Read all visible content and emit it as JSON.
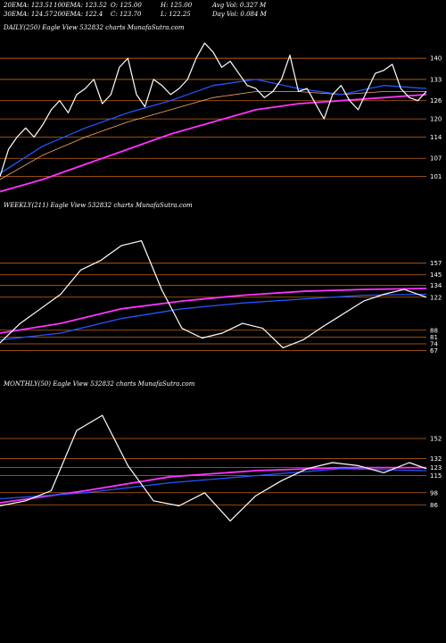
{
  "header": {
    "ema20": "20EMA: 123.51",
    "ema100": "100EMA: 123.52",
    "open": "O: 125.00",
    "high": "H: 125.00",
    "avgvol": "Avg Vol: 0.327 M",
    "ema30": "30EMA: 124.57",
    "ema200": "200EMA: 122.4",
    "close": "C: 123.70",
    "low": "L: 122.25",
    "dayvol": "Day Vol: 0.084 M"
  },
  "colors": {
    "price": "#ffffff",
    "ema_fast": "#2255ff",
    "ema_slow": "#ff33ff",
    "grid": "#c86414",
    "ma_light": "#ffaa66"
  },
  "chart_data": [
    {
      "type": "line",
      "title": "DAILY(250) Eagle  View  532832  charts MunafaSutra.com",
      "ylim": [
        95,
        148
      ],
      "right_ticks": [
        140,
        133,
        126,
        120,
        114,
        107,
        101
      ],
      "series": [
        {
          "role": "price",
          "x": [
            0,
            5,
            10,
            15,
            20,
            25,
            30,
            35,
            40,
            45,
            50,
            55,
            60,
            65,
            70,
            75,
            80,
            85,
            90,
            95,
            100,
            105,
            110,
            115,
            120,
            125,
            130,
            135,
            140,
            145,
            150,
            155,
            160,
            165,
            170,
            175,
            180,
            185,
            190,
            195,
            200,
            205,
            210,
            215,
            220,
            225,
            230,
            235,
            240,
            245,
            250
          ],
          "values": [
            101,
            110,
            114,
            117,
            114,
            118,
            123,
            126,
            122,
            128,
            130,
            133,
            125,
            128,
            137,
            140,
            128,
            124,
            133,
            131,
            128,
            130,
            133,
            140,
            145,
            142,
            137,
            139,
            135,
            131,
            130,
            127,
            129,
            133,
            141,
            129,
            130,
            125,
            120,
            128,
            131,
            126,
            123,
            129,
            135,
            136,
            138,
            130,
            127,
            126,
            129
          ]
        },
        {
          "role": "ema_fast",
          "x": [
            0,
            25,
            50,
            75,
            100,
            125,
            150,
            175,
            200,
            225,
            250
          ],
          "values": [
            102,
            111,
            117,
            122,
            126,
            131,
            133,
            130,
            128,
            131,
            130
          ]
        },
        {
          "role": "ema_mid",
          "x": [
            0,
            25,
            50,
            75,
            100,
            125,
            150,
            175,
            200,
            225,
            250
          ],
          "values": [
            100,
            108,
            114,
            119,
            123,
            127,
            129,
            129,
            128,
            129,
            129
          ]
        },
        {
          "role": "ema_slow",
          "x": [
            0,
            25,
            50,
            75,
            100,
            125,
            150,
            175,
            200,
            225,
            250
          ],
          "values": [
            96,
            100,
            105,
            110,
            115,
            119,
            123,
            125,
            126,
            127,
            128
          ]
        }
      ]
    },
    {
      "type": "line",
      "title": "WEEKLY(211) Eagle  View  532832  charts MunafaSutra.com",
      "ylim": [
        40,
        210
      ],
      "right_ticks": [
        157,
        145,
        134,
        122,
        88,
        81,
        74,
        67
      ],
      "series": [
        {
          "role": "price",
          "x": [
            0,
            10,
            20,
            30,
            40,
            50,
            60,
            70,
            80,
            90,
            100,
            110,
            120,
            130,
            140,
            150,
            160,
            170,
            180,
            190,
            200,
            211
          ],
          "values": [
            75,
            95,
            110,
            125,
            150,
            160,
            175,
            180,
            130,
            90,
            80,
            85,
            95,
            90,
            70,
            78,
            92,
            105,
            118,
            125,
            130,
            122
          ]
        },
        {
          "role": "ema_fast",
          "x": [
            0,
            30,
            60,
            90,
            120,
            150,
            180,
            211
          ],
          "values": [
            78,
            85,
            100,
            110,
            116,
            120,
            124,
            125
          ]
        },
        {
          "role": "ema_slow",
          "x": [
            0,
            30,
            60,
            90,
            120,
            150,
            180,
            211
          ],
          "values": [
            85,
            95,
            110,
            118,
            124,
            128,
            130,
            131
          ]
        }
      ]
    },
    {
      "type": "line",
      "title": "MONTHLY(50) Eagle  View  532832  charts MunafaSutra.com",
      "ylim": [
        40,
        200
      ],
      "right_ticks": [
        152,
        132,
        123,
        115,
        98,
        86
      ],
      "series": [
        {
          "role": "price",
          "x": [
            0,
            3,
            6,
            9,
            12,
            15,
            18,
            21,
            24,
            27,
            30,
            33,
            36,
            39,
            42,
            45,
            48,
            50
          ],
          "values": [
            85,
            90,
            100,
            160,
            175,
            125,
            90,
            85,
            98,
            70,
            95,
            110,
            122,
            128,
            125,
            118,
            128,
            122
          ]
        },
        {
          "role": "ema_fast",
          "x": [
            0,
            10,
            20,
            30,
            40,
            50
          ],
          "values": [
            92,
            98,
            108,
            115,
            122,
            120
          ]
        },
        {
          "role": "ema_slow",
          "x": [
            0,
            10,
            20,
            30,
            40,
            50
          ],
          "values": [
            88,
            100,
            114,
            120,
            123,
            123
          ]
        }
      ]
    }
  ]
}
